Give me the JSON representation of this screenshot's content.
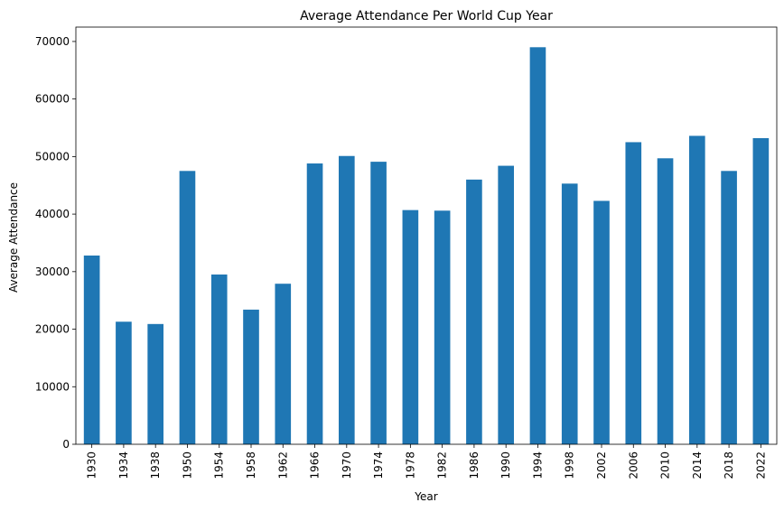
{
  "chart_data": {
    "type": "bar",
    "title": "Average Attendance Per World Cup Year",
    "xlabel": "Year",
    "ylabel": "Average Attendance",
    "categories": [
      "1930",
      "1934",
      "1938",
      "1950",
      "1954",
      "1958",
      "1962",
      "1966",
      "1970",
      "1974",
      "1978",
      "1982",
      "1986",
      "1990",
      "1994",
      "1998",
      "2002",
      "2006",
      "2010",
      "2014",
      "2018",
      "2022"
    ],
    "values": [
      32800,
      21300,
      20900,
      47500,
      29500,
      23400,
      27900,
      48800,
      50100,
      49100,
      40700,
      40600,
      46000,
      48400,
      69000,
      45300,
      42300,
      52500,
      49700,
      53600,
      47500,
      53200
    ],
    "ylim": [
      0,
      72500
    ],
    "yticks": [
      0,
      10000,
      20000,
      30000,
      40000,
      50000,
      60000,
      70000
    ],
    "ytick_labels": [
      "0",
      "10000",
      "20000",
      "30000",
      "40000",
      "50000",
      "60000",
      "70000"
    ],
    "grid": false,
    "legend": false,
    "bar_color": "#1f77b4"
  }
}
